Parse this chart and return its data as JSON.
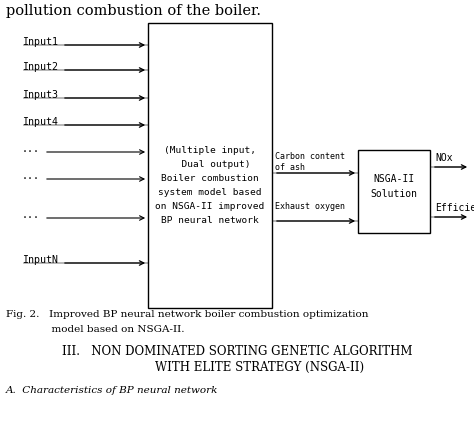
{
  "bg_color": "#ffffff",
  "title_top": "pollution combustion of the boiler.",
  "inputs": [
    "Input1",
    "Input2",
    "Input3",
    "Input4",
    "...",
    "...",
    "...",
    "InputN"
  ],
  "input_has_line": [
    false,
    true,
    false,
    true,
    false,
    true,
    false,
    true
  ],
  "box1_text_lines": [
    "(Multiple input,",
    "  Dual output)",
    "Boiler combustion",
    "system model based",
    "on NSGA-II improved",
    "BP neural network"
  ],
  "upper_label_lines": [
    "Carbon content",
    "of ash"
  ],
  "lower_label": "Exhaust oxygen",
  "box3_text": "NSGA-II\nSolution",
  "output1_text": "NOx",
  "output2_text": "Efficiency",
  "caption_line1": "Fig. 2.   Improved BP neural network boiler combustion optimization",
  "caption_line2": "              model based on NSGA-II.",
  "section_line1": "III.   NON DOMINATED SORTING GENETIC ALGORITHM",
  "section_line2": "            WITH ELITE STRATEGY (NSGA-II)",
  "sub_italic": "A.  Characteristics of BP neural network"
}
